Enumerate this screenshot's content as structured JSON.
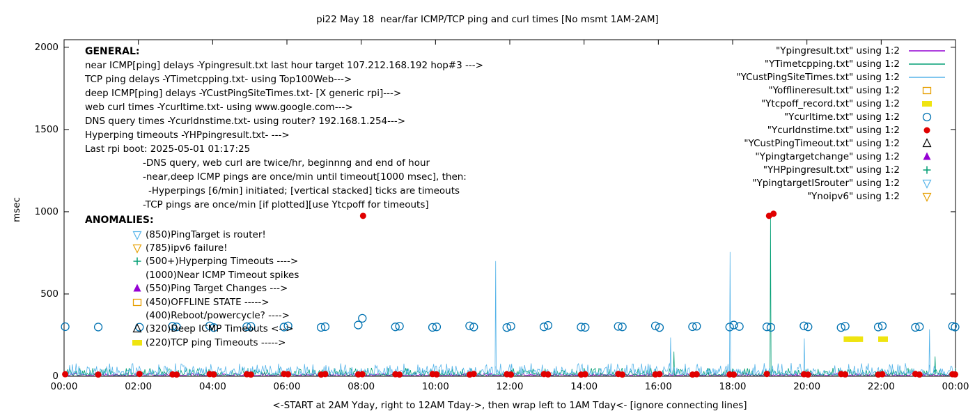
{
  "chart_data": {
    "type": "scatter",
    "title": "pi22 May 18  near/far ICMP/TCP ping and curl times [No msmt 1AM-2AM]",
    "xlabel": "<-START at 2AM Yday, right to 12AM Tday->, then wrap left to 1AM Tday<- [ignore connecting lines]",
    "ylabel": "msec",
    "xlim": [
      0,
      24
    ],
    "ylim": [
      0,
      2046
    ],
    "yticks": [
      0,
      500,
      1000,
      1500,
      2000
    ],
    "xtick_hours": [
      0,
      2,
      4,
      6,
      8,
      10,
      12,
      14,
      16,
      18,
      20,
      22,
      24
    ],
    "xtick_labels": [
      "00:00",
      "02:00",
      "04:00",
      "06:00",
      "08:00",
      "10:00",
      "12:00",
      "14:00",
      "16:00",
      "18:00",
      "20:00",
      "22:00",
      "00:00"
    ],
    "grid": false,
    "legend_position": "top-right-inside",
    "series": [
      {
        "name": "\"Ypingresult.txt\" using 1:2",
        "type": "line",
        "color": "#9400d3",
        "baseline": 8,
        "noise": 8,
        "spikes": []
      },
      {
        "name": "\"YTimetcpping.txt\" using 1:2",
        "type": "line",
        "color": "#009e73",
        "baseline": 15,
        "noise": 30,
        "spikes": [
          [
            16.42,
            150
          ],
          [
            19.02,
            990
          ],
          [
            23.45,
            120
          ]
        ]
      },
      {
        "name": "\"YCustPingSiteTimes.txt\" using 1:2",
        "type": "line",
        "color": "#56b4e9",
        "baseline": 25,
        "noise": 45,
        "spikes": [
          [
            11.62,
            700
          ],
          [
            16.33,
            235
          ],
          [
            17.93,
            755
          ],
          [
            19.93,
            230
          ],
          [
            23.3,
            285
          ]
        ]
      },
      {
        "name": "\"Yofflineresult.txt\" using 1:2",
        "type": "points",
        "marker": "square-open",
        "color": "#e69f00",
        "points": []
      },
      {
        "name": "\"Ytcpoff_record.txt\" using 1:2",
        "type": "points",
        "marker": "square-filled",
        "color": "#efe410",
        "points": [
          [
            21.12,
            225
          ],
          [
            21.25,
            225
          ],
          [
            21.38,
            225
          ],
          [
            22.05,
            225
          ]
        ]
      },
      {
        "name": "\"Ycurltime.txt\" using 1:2",
        "type": "points",
        "marker": "circle-open",
        "color": "#0072b2",
        "points": [
          [
            0.03,
            301
          ],
          [
            0.92,
            299
          ],
          [
            2.03,
            298
          ],
          [
            2.92,
            304
          ],
          [
            3.03,
            300
          ],
          [
            3.92,
            306
          ],
          [
            4.03,
            296
          ],
          [
            4.92,
            301
          ],
          [
            5.03,
            303
          ],
          [
            5.92,
            299
          ],
          [
            6.03,
            306
          ],
          [
            6.92,
            297
          ],
          [
            7.03,
            301
          ],
          [
            7.92,
            311
          ],
          [
            8.03,
            352
          ],
          [
            8.92,
            300
          ],
          [
            9.03,
            304
          ],
          [
            9.92,
            297
          ],
          [
            10.03,
            300
          ],
          [
            10.92,
            306
          ],
          [
            11.03,
            299
          ],
          [
            11.92,
            296
          ],
          [
            12.03,
            304
          ],
          [
            12.92,
            300
          ],
          [
            13.03,
            309
          ],
          [
            13.92,
            299
          ],
          [
            14.03,
            297
          ],
          [
            14.92,
            303
          ],
          [
            15.03,
            300
          ],
          [
            15.92,
            306
          ],
          [
            16.03,
            296
          ],
          [
            16.92,
            301
          ],
          [
            17.03,
            304
          ],
          [
            17.92,
            299
          ],
          [
            18.03,
            311
          ],
          [
            18.18,
            302
          ],
          [
            18.92,
            300
          ],
          [
            19.03,
            297
          ],
          [
            19.92,
            306
          ],
          [
            20.03,
            300
          ],
          [
            20.92,
            296
          ],
          [
            21.03,
            304
          ],
          [
            21.92,
            299
          ],
          [
            22.03,
            306
          ],
          [
            22.92,
            297
          ],
          [
            23.03,
            301
          ],
          [
            23.92,
            304
          ],
          [
            23.99,
            299
          ]
        ]
      },
      {
        "name": "\"Ycurldnstime.txt\" using 1:2",
        "type": "points",
        "marker": "circle-filled",
        "color": "#e00000",
        "points": [
          [
            0.03,
            12
          ],
          [
            0.92,
            10
          ],
          [
            2.03,
            14
          ],
          [
            2.92,
            11
          ],
          [
            3.03,
            10
          ],
          [
            3.92,
            13
          ],
          [
            4.03,
            11
          ],
          [
            4.92,
            12
          ],
          [
            5.03,
            10
          ],
          [
            5.92,
            14
          ],
          [
            6.03,
            12
          ],
          [
            6.92,
            10
          ],
          [
            7.03,
            13
          ],
          [
            7.92,
            11
          ],
          [
            8.03,
            12
          ],
          [
            8.05,
            975
          ],
          [
            8.92,
            12
          ],
          [
            9.03,
            10
          ],
          [
            9.92,
            13
          ],
          [
            10.03,
            11
          ],
          [
            10.92,
            10
          ],
          [
            11.03,
            14
          ],
          [
            11.92,
            12
          ],
          [
            12.03,
            10
          ],
          [
            12.92,
            13
          ],
          [
            13.03,
            11
          ],
          [
            13.92,
            10
          ],
          [
            14.03,
            12
          ],
          [
            14.92,
            14
          ],
          [
            15.03,
            10
          ],
          [
            15.92,
            11
          ],
          [
            16.03,
            13
          ],
          [
            16.92,
            10
          ],
          [
            17.03,
            12
          ],
          [
            17.92,
            11
          ],
          [
            18.03,
            10
          ],
          [
            18.92,
            14
          ],
          [
            18.98,
            975
          ],
          [
            19.1,
            988
          ],
          [
            19.92,
            12
          ],
          [
            20.03,
            10
          ],
          [
            20.92,
            13
          ],
          [
            21.03,
            11
          ],
          [
            21.92,
            10
          ],
          [
            22.03,
            12
          ],
          [
            22.92,
            14
          ],
          [
            23.03,
            10
          ],
          [
            23.92,
            12
          ],
          [
            23.99,
            11
          ]
        ]
      },
      {
        "name": "\"YCustPingTimeout.txt\" using 1:2",
        "type": "points",
        "marker": "triangle-open",
        "color": "#000000",
        "points": []
      },
      {
        "name": "\"Ypingtargetchange\" using 1:2",
        "type": "points",
        "marker": "triangle-filled",
        "color": "#9400d3",
        "points": []
      },
      {
        "name": "\"YHPpingresult.txt\" using 1:2",
        "type": "points",
        "marker": "plus",
        "color": "#009e73",
        "points": []
      },
      {
        "name": "\"YpingtargetISrouter\" using 1:2",
        "type": "points",
        "marker": "tridown-open",
        "color": "#56b4e9",
        "points": []
      },
      {
        "name": "\"Ynoipv6\" using 1:2",
        "type": "points",
        "marker": "tridown-open",
        "color": "#e69f00",
        "points": []
      }
    ]
  },
  "general": {
    "heading": "GENERAL:",
    "lines": [
      "near ICMP[ping] delays -Ypingresult.txt last hour target 107.212.168.192 hop#3 --->",
      "TCP ping delays -YTimetcpping.txt- using Top100Web--->",
      "deep ICMP[ping] delays -YCustPingSiteTimes.txt- [X generic rpi]--->",
      "web curl times -Ycurltime.txt- using www.google.com--->",
      "DNS query times -Ycurldnstime.txt- using router? 192.168.1.254--->",
      "Hyperping timeouts -YHPpingresult.txt- --->",
      "Last rpi boot: 2025-05-01 01:17:25"
    ],
    "notes": [
      "-DNS query, web curl are twice/hr, beginnng and end of hour",
      "-near,deep ICMP pings are once/min until timeout[1000 msec], then:",
      "-Hyperpings [6/min] initiated; [vertical stacked] ticks are timeouts",
      "-TCP pings are once/min [if plotted][use Ytcpoff for timeouts]"
    ]
  },
  "anomalies": {
    "heading": "ANOMALIES:",
    "items": [
      {
        "marker": "tridown-open",
        "color": "#56b4e9",
        "text": "(850)PingTarget is router!"
      },
      {
        "marker": "tridown-open",
        "color": "#e69f00",
        "text": "(785)ipv6 failure!"
      },
      {
        "marker": "plus",
        "color": "#009e73",
        "text": "(500+)Hyperping Timeouts ---->"
      },
      {
        "marker": null,
        "color": null,
        "text": "(1000)Near ICMP Timeout spikes"
      },
      {
        "marker": "triangle-filled",
        "color": "#9400d3",
        "text": "(550)Ping Target Changes --->"
      },
      {
        "marker": "square-open",
        "color": "#e69f00",
        "text": "(450)OFFLINE STATE ----->"
      },
      {
        "marker": null,
        "color": null,
        "text": "(400)Reboot/powercycle? ---->"
      },
      {
        "marker": "triangle-open",
        "color": "#000000",
        "text": "(320)Deep ICMP Timeouts <-->"
      },
      {
        "marker": "square-filled",
        "color": "#efe410",
        "text": "(220)TCP ping Timeouts ----->"
      }
    ]
  }
}
